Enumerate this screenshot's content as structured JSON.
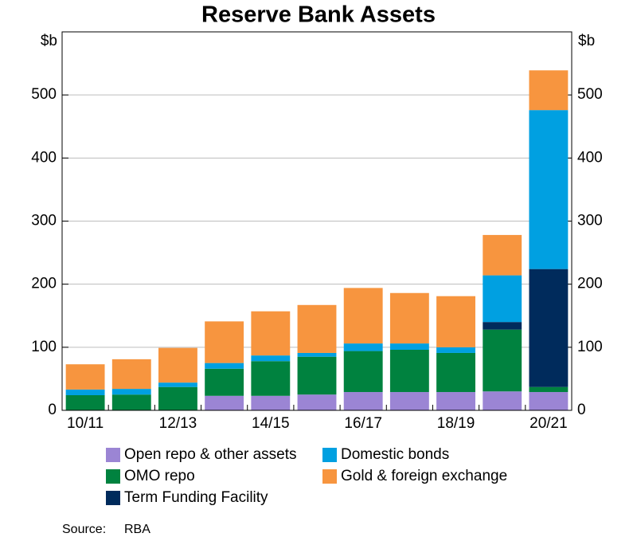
{
  "chart_data": {
    "type": "stacked_bar",
    "title": "Reserve Bank Assets",
    "y_unit": "$b",
    "y2_unit": "$b",
    "categories": [
      "10/11",
      null,
      "12/13",
      null,
      "14/15",
      null,
      "16/17",
      null,
      "18/19",
      null,
      "20/21"
    ],
    "series": [
      {
        "name": "Open repo & other assets",
        "color": "#9b85d4",
        "values": [
          0,
          0,
          0,
          23,
          23,
          25,
          29,
          29,
          29,
          30,
          29
        ]
      },
      {
        "name": "OMO repo",
        "color": "#00823f",
        "values": [
          24,
          25,
          37,
          43,
          55,
          60,
          65,
          67,
          62,
          98,
          8
        ]
      },
      {
        "name": "Term Funding Facility",
        "color": "#002b5c",
        "values": [
          0,
          0,
          0,
          0,
          0,
          0,
          0,
          0,
          0,
          12,
          187
        ]
      },
      {
        "name": "Domestic bonds",
        "color": "#00a0e1",
        "values": [
          9,
          9,
          7,
          9,
          9,
          6,
          12,
          10,
          9,
          74,
          252
        ]
      },
      {
        "name": "Gold & foreign exchange",
        "color": "#f7953f",
        "values": [
          40,
          47,
          55,
          66,
          70,
          76,
          88,
          80,
          81,
          64,
          63
        ]
      }
    ],
    "ylim": [
      0,
      600
    ],
    "yticks": [
      0,
      100,
      200,
      300,
      400,
      500
    ],
    "y2lim": [
      0,
      600
    ],
    "y2ticks": [
      0,
      100,
      200,
      300,
      400,
      500
    ],
    "grid": true,
    "source_label": "Source:",
    "source": "RBA"
  }
}
